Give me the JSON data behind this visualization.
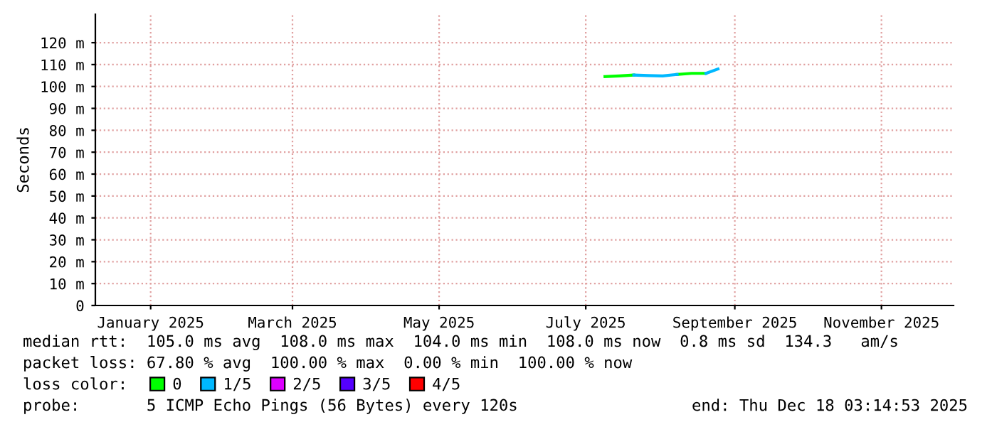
{
  "chart_data": {
    "type": "line",
    "ylabel": "Seconds",
    "x": [
      "2025-07-09",
      "2025-07-15",
      "2025-07-21",
      "2025-07-27",
      "2025-08-02",
      "2025-08-08",
      "2025-08-14",
      "2025-08-20",
      "2025-08-25"
    ],
    "series": [
      {
        "name": "0",
        "color": "#00ff00",
        "values": [
          104.5,
          104.8,
          105.2,
          null,
          null,
          105.5,
          106,
          106,
          null
        ]
      },
      {
        "name": "1/5",
        "color": "#00b8ff",
        "values": [
          null,
          null,
          105.2,
          105,
          104.8,
          105.5,
          null,
          106,
          108
        ]
      },
      {
        "name": "2/5",
        "color": "#dd00ff",
        "values": [
          null,
          null,
          null,
          null,
          null,
          null,
          null,
          null,
          null
        ]
      },
      {
        "name": "3/5",
        "color": "#5500ff",
        "values": [
          null,
          null,
          null,
          null,
          null,
          null,
          null,
          null,
          null
        ]
      },
      {
        "name": "4/5",
        "color": "#ff0000",
        "values": [
          null,
          null,
          null,
          null,
          null,
          null,
          null,
          null,
          null
        ]
      }
    ],
    "xlim": [
      "2024-12-09",
      "2025-12-01"
    ],
    "xticks": [
      {
        "value": "2025-01-01",
        "label": "January 2025"
      },
      {
        "value": "2025-03-01",
        "label": "March 2025"
      },
      {
        "value": "2025-05-01",
        "label": "May 2025"
      },
      {
        "value": "2025-07-01",
        "label": "July 2025"
      },
      {
        "value": "2025-09-01",
        "label": "September 2025"
      },
      {
        "value": "2025-11-01",
        "label": "November 2025"
      }
    ],
    "ylim": [
      0,
      133
    ],
    "yticks": [
      0,
      {
        "value": 10,
        "label": "10 m"
      },
      {
        "value": 20,
        "label": "20 m"
      },
      {
        "value": 30,
        "label": "30 m"
      },
      {
        "value": 40,
        "label": "40 m"
      },
      {
        "value": 50,
        "label": "50 m"
      },
      {
        "value": 60,
        "label": "60 m"
      },
      {
        "value": 70,
        "label": "70 m"
      },
      {
        "value": 80,
        "label": "80 m"
      },
      {
        "value": 90,
        "label": "90 m"
      },
      {
        "value": 100,
        "label": "100 m"
      },
      {
        "value": 110,
        "label": "110 m"
      },
      {
        "value": 120,
        "label": "120 m"
      }
    ],
    "grid": true,
    "legend": "bottom",
    "annotations": [
      "median rtt:  105.0 ms avg  108.0 ms max  104.0 ms min  108.0 ms now  0.8 ms sd  134.3   am/s",
      "packet loss: 67.80 % avg  100.00 % max  0.00 % min  100.00 % now",
      "loss color:",
      "probe:       5 ICMP Echo Pings (56 Bytes) every 120s",
      "end: Thu Dec 18 03:14:53 2025"
    ]
  }
}
